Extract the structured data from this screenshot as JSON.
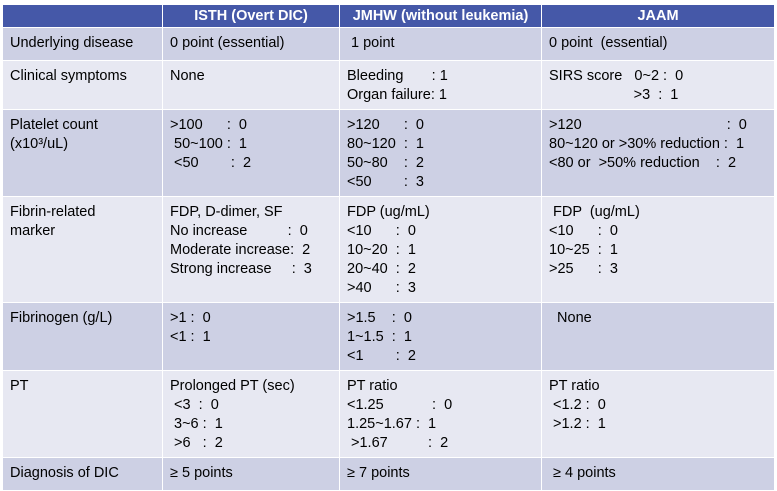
{
  "header": {
    "col1": "ISTH  (Overt DIC)",
    "col2": "JMHW (without leukemia)",
    "col3": "JAAM"
  },
  "rows": [
    {
      "label": [
        "Underlying disease"
      ],
      "isth": [
        "0 point (essential)"
      ],
      "jmhw": [
        " 1 point"
      ],
      "jaam": [
        "0 point  (essential)"
      ]
    },
    {
      "label": [
        "Clinical symptoms"
      ],
      "isth": [
        "None"
      ],
      "jmhw": [
        "Bleeding       : 1",
        "Organ failure: 1"
      ],
      "jaam": [
        "SIRS score   0~2 :  0",
        "                     >3  :  1"
      ]
    },
    {
      "label": [
        "Platelet count",
        "(x10³/uL)"
      ],
      "isth": [
        ">100      :  0",
        " 50~100 :  1",
        " <50        :  2"
      ],
      "jmhw": [
        ">120      :  0",
        "80~120  :  1",
        "50~80    :  2",
        "<50        :  3"
      ],
      "jaam": [
        ">120                                    :  0",
        "80~120 or >30% reduction :  1",
        "<80 or  >50% reduction    :  2"
      ]
    },
    {
      "label": [
        "Fibrin-related",
        "marker"
      ],
      "isth": [
        "FDP, D-dimer, SF",
        "No increase          :  0",
        "Moderate increase:  2",
        "Strong increase     :  3"
      ],
      "jmhw": [
        "FDP (ug/mL)",
        "<10      :  0",
        "10~20  :  1",
        "20~40  :  2",
        ">40      :  3"
      ],
      "jaam": [
        " FDP  (ug/mL)",
        "<10      :  0",
        "10~25  :  1",
        ">25      :  3"
      ]
    },
    {
      "label": [
        "Fibrinogen (g/L)"
      ],
      "isth": [
        ">1 :  0",
        "<1 :  1"
      ],
      "jmhw": [
        ">1.5    :  0",
        "1~1.5  :  1",
        "<1        :  2"
      ],
      "jaam": [
        "  None"
      ]
    },
    {
      "label": [
        "PT"
      ],
      "isth": [
        "Prolonged PT (sec)",
        " <3  :  0",
        " 3~6 :  1",
        " >6   :  2"
      ],
      "jmhw": [
        "PT ratio",
        "<1.25            :  0",
        "1.25~1.67 :  1",
        " >1.67          :  2"
      ],
      "jaam": [
        "PT ratio",
        " <1.2 :  0",
        " >1.2 :  1"
      ]
    },
    {
      "label": [
        "Diagnosis of DIC"
      ],
      "isth": [
        "≥ 5 points"
      ],
      "jmhw": [
        "≥ 7 points"
      ],
      "jaam": [
        " ≥ 4 points"
      ]
    }
  ]
}
